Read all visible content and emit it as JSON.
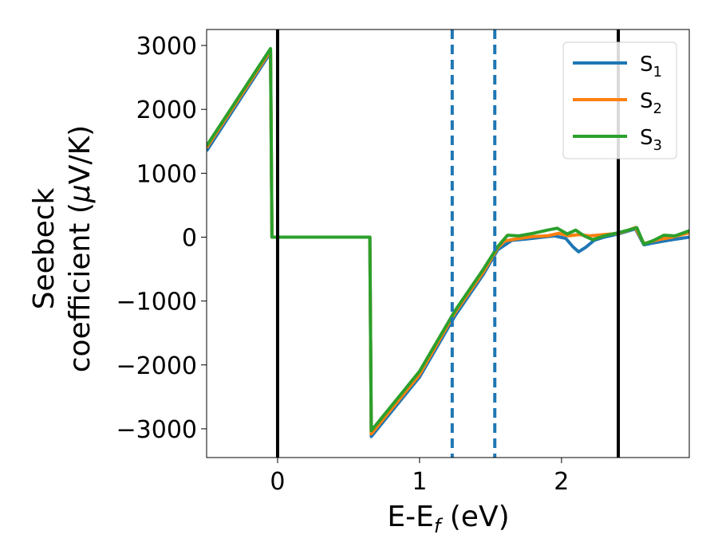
{
  "chart_data": {
    "type": "line",
    "xlabel": {
      "main": "E-E",
      "sub": "f",
      "unit": " (eV)"
    },
    "ylabel": {
      "line1": "Seebeck",
      "line2_prefix": "coefficient  (",
      "mu": "μ",
      "line2_suffix": "V/K)"
    },
    "xlim": [
      -0.5,
      2.9
    ],
    "ylim": [
      -3450,
      3250
    ],
    "x_ticks": [
      0,
      1,
      2
    ],
    "x_tick_labels": [
      "0",
      "1",
      "2"
    ],
    "y_ticks": [
      -3000,
      -2000,
      -1000,
      0,
      1000,
      2000,
      3000
    ],
    "y_tick_labels": [
      "−3000",
      "−2000",
      "−1000",
      "0",
      "1000",
      "2000",
      "3000"
    ],
    "grid": false,
    "legend_position": "top-right",
    "vertical_lines": [
      {
        "x": 0,
        "style": "solid",
        "color": "#000000"
      },
      {
        "x": 2.4,
        "style": "solid",
        "color": "#000000"
      },
      {
        "x": 1.23,
        "style": "dashed",
        "color": "#1f77b4"
      },
      {
        "x": 1.53,
        "style": "dashed",
        "color": "#1f77b4"
      }
    ],
    "series": [
      {
        "name": "S",
        "sub": "1",
        "color": "#1f77b4",
        "points": [
          [
            -0.5,
            1350
          ],
          [
            -0.05,
            2890
          ],
          [
            -0.04,
            0
          ],
          [
            0.65,
            0
          ],
          [
            0.66,
            -3120
          ],
          [
            1.0,
            -2190
          ],
          [
            1.25,
            -1230
          ],
          [
            1.45,
            -580
          ],
          [
            1.55,
            -200
          ],
          [
            1.65,
            -50
          ],
          [
            1.75,
            -30
          ],
          [
            1.85,
            -5
          ],
          [
            1.95,
            20
          ],
          [
            2.03,
            -20
          ],
          [
            2.08,
            -150
          ],
          [
            2.12,
            -230
          ],
          [
            2.17,
            -160
          ],
          [
            2.23,
            -50
          ],
          [
            2.3,
            0
          ],
          [
            2.4,
            50
          ],
          [
            2.46,
            90
          ],
          [
            2.52,
            130
          ],
          [
            2.58,
            -120
          ],
          [
            2.65,
            -90
          ],
          [
            2.75,
            -50
          ],
          [
            2.9,
            0
          ]
        ]
      },
      {
        "name": "S",
        "sub": "2",
        "color": "#ff7f0e",
        "points": [
          [
            -0.5,
            1400
          ],
          [
            -0.05,
            2920
          ],
          [
            -0.04,
            0
          ],
          [
            0.65,
            0
          ],
          [
            0.66,
            -3080
          ],
          [
            1.0,
            -2150
          ],
          [
            1.25,
            -1180
          ],
          [
            1.45,
            -540
          ],
          [
            1.55,
            -170
          ],
          [
            1.6,
            -60
          ],
          [
            1.7,
            -20
          ],
          [
            1.8,
            10
          ],
          [
            1.9,
            20
          ],
          [
            1.98,
            60
          ],
          [
            2.05,
            20
          ],
          [
            2.12,
            40
          ],
          [
            2.2,
            20
          ],
          [
            2.3,
            40
          ],
          [
            2.4,
            60
          ],
          [
            2.46,
            100
          ],
          [
            2.52,
            150
          ],
          [
            2.58,
            -100
          ],
          [
            2.68,
            -40
          ],
          [
            2.78,
            0
          ],
          [
            2.9,
            70
          ]
        ]
      },
      {
        "name": "S",
        "sub": "3",
        "color": "#2ca02c",
        "points": [
          [
            -0.5,
            1430
          ],
          [
            -0.05,
            2950
          ],
          [
            -0.04,
            0
          ],
          [
            0.65,
            0
          ],
          [
            0.66,
            -3030
          ],
          [
            1.0,
            -2100
          ],
          [
            1.25,
            -1150
          ],
          [
            1.45,
            -500
          ],
          [
            1.55,
            -150
          ],
          [
            1.62,
            30
          ],
          [
            1.7,
            20
          ],
          [
            1.8,
            60
          ],
          [
            1.9,
            110
          ],
          [
            1.97,
            140
          ],
          [
            2.04,
            50
          ],
          [
            2.1,
            110
          ],
          [
            2.16,
            20
          ],
          [
            2.22,
            -40
          ],
          [
            2.3,
            20
          ],
          [
            2.4,
            70
          ],
          [
            2.47,
            110
          ],
          [
            2.53,
            150
          ],
          [
            2.58,
            -110
          ],
          [
            2.65,
            -50
          ],
          [
            2.72,
            30
          ],
          [
            2.8,
            20
          ],
          [
            2.9,
            100
          ]
        ]
      }
    ]
  }
}
